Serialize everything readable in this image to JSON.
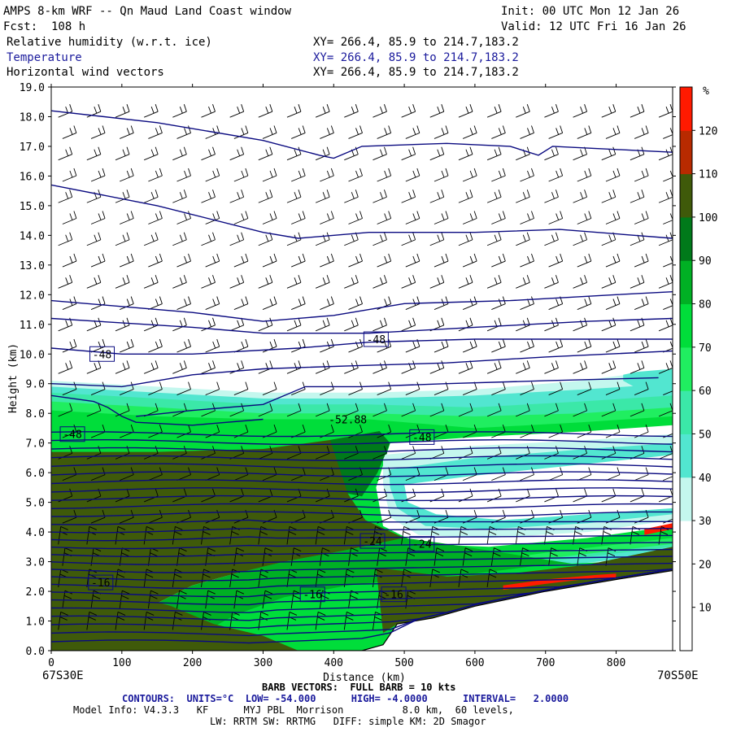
{
  "header": {
    "title": "AMPS 8-km WRF -- Qn Maud Land Coast window",
    "init": "Init: 00 UTC Mon 12 Jan 26",
    "fcst": "Fcst:  108 h",
    "valid": "Valid: 12 UTC Fri 16 Jan 26",
    "fields": [
      {
        "name": "Relative humidity (w.r.t. ice)",
        "xy": "XY= 266.4, 85.9 to 214.7,183.2"
      },
      {
        "name": "Temperature",
        "xy": "XY= 266.4, 85.9 to 214.7,183.2"
      },
      {
        "name": "Horizontal wind vectors",
        "xy": "XY= 266.4, 85.9 to 214.7,183.2"
      }
    ]
  },
  "axes": {
    "left_point": "67S30E",
    "right_point": "70S50E"
  },
  "footer": {
    "barb": "BARB VECTORS:  FULL BARB = 10 kts",
    "contours": "CONTOURS:  UNITS=°C  LOW= -54.000      HIGH= -4.0000      INTERVAL=   2.0000",
    "model": "Model Info: V4.3.3   KF      MYJ PBL  Morrison          8.0 km,  60 levels,",
    "lw": "LW: RRTM SW: RRTMG   DIFF: simple KM: 2D Smagor"
  },
  "colors": {
    "rh_20_30": "#ffffff",
    "rh_30_40": "#c4f7ee",
    "rh_40_50": "#52e6d0",
    "rh_50_60": "#3be8a8",
    "rh_60_70": "#20ee60",
    "rh_70_80": "#00dd3a",
    "rh_80_90": "#00b024",
    "rh_90_100": "#007a1a",
    "rh_100_110": "#3f5a0a",
    "rh_110_120": "#b82a00",
    "rh_above_120": "#ff1a00",
    "contour": "#0a0a80",
    "surface_label_red": "#e01a1a"
  },
  "chart_data": {
    "type": "cross-section",
    "title": "Relative humidity (w.r.t. ice), Temperature, Horizontal wind vectors",
    "xlabel": "Distance (km)",
    "ylabel": "Height (km)",
    "xlim": [
      0,
      880
    ],
    "ylim": [
      0,
      19
    ],
    "xticks": [
      "0",
      "100",
      "200",
      "300",
      "400",
      "500",
      "600",
      "700",
      "800"
    ],
    "yticks": [
      "0.0",
      "1.0",
      "2.0",
      "3.0",
      "4.0",
      "5.0",
      "6.0",
      "7.0",
      "8.0",
      "9.0",
      "10.0",
      "11.0",
      "12.0",
      "13.0",
      "14.0",
      "15.0",
      "16.0",
      "17.0",
      "18.0",
      "19.0"
    ],
    "colorbar": {
      "unit": "%",
      "tick_labels": [
        "10",
        "20",
        "30",
        "40",
        "50",
        "60",
        "70",
        "80",
        "90",
        "100",
        "110",
        "120"
      ]
    },
    "terrain_km": [
      [
        0,
        0.0
      ],
      [
        440,
        0.0
      ],
      [
        470,
        0.2
      ],
      [
        490,
        0.9
      ],
      [
        540,
        1.1
      ],
      [
        600,
        1.5
      ],
      [
        700,
        2.0
      ],
      [
        800,
        2.4
      ],
      [
        880,
        2.7
      ]
    ],
    "temperature_contour_labels": [
      {
        "text": "-48",
        "x": 72,
        "y": 10.0
      },
      {
        "text": "-48",
        "x": 460,
        "y": 10.5
      },
      {
        "text": "-48",
        "x": 30,
        "y": 7.3
      },
      {
        "text": "-48",
        "x": 525,
        "y": 7.2
      },
      {
        "text": "-52.88",
        "x": 420,
        "y": 7.8
      },
      {
        "text": "-24",
        "x": 455,
        "y": 3.7
      },
      {
        "text": "-24",
        "x": 525,
        "y": 3.6
      },
      {
        "text": "-16",
        "x": 70,
        "y": 2.3
      },
      {
        "text": "-16",
        "x": 370,
        "y": 1.9
      },
      {
        "text": "-16",
        "x": 485,
        "y": 1.9
      }
    ],
    "contour_low": -54.0,
    "contour_high": -4.0,
    "contour_interval": 2.0,
    "barb_full_kts": 10
  }
}
